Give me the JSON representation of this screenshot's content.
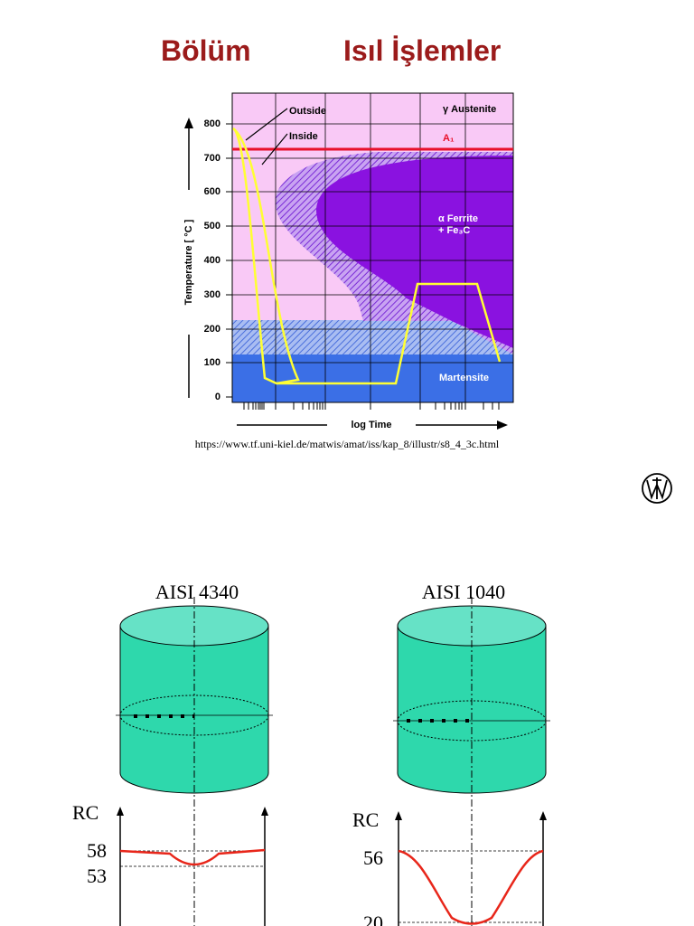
{
  "header": {
    "title_left": "Bölüm",
    "title_right": "Isıl İşlemler"
  },
  "diagram": {
    "labels": {
      "outside": "Outside",
      "inside": "Inside",
      "austenite": "γ Austenite",
      "a1": "A₁",
      "ferrite": "α  Ferrite",
      "fe3c": "+ Fe₃C",
      "martensite": "Martensite"
    },
    "y_axis_label": "Temperature  [ °C ]",
    "y_ticks": [
      "800",
      "700",
      "600",
      "500",
      "400",
      "300",
      "200",
      "100",
      "0"
    ],
    "x_axis_label": "log  Time",
    "source": "https://www.tf.uni-kiel.de/matwis/amat/iss/kap_8/illustr/s8_4_3c.html"
  },
  "samples": [
    {
      "name": "AISI 4340",
      "axis_label": "RC",
      "hardness_labels": [
        "58",
        "53"
      ]
    },
    {
      "name": "AISI 1040",
      "axis_label": "RC",
      "hardness_labels": [
        "56",
        "20"
      ]
    }
  ]
}
